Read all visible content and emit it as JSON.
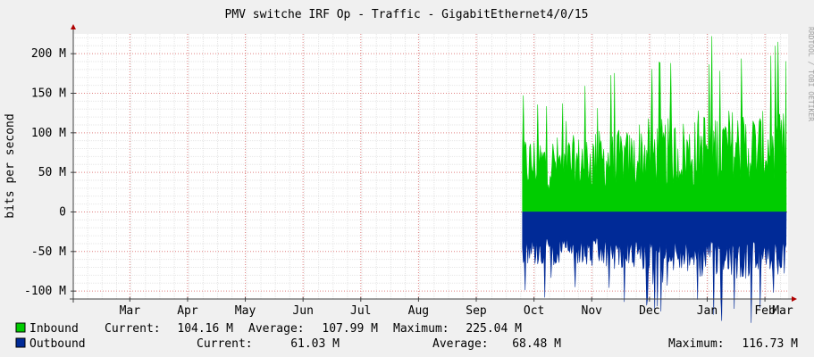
{
  "chart_data": {
    "type": "area",
    "title": "PMV switche IRF Op - Traffic - GigabitEthernet4/0/15",
    "ylabel": "bits per second",
    "watermark": "RRDTOOL / TOBI OETIKER",
    "ylim": [
      -110,
      225
    ],
    "yunit": "M",
    "yticks": [
      {
        "value": 200,
        "label": "200 M"
      },
      {
        "value": 150,
        "label": "150 M"
      },
      {
        "value": 100,
        "label": "100 M"
      },
      {
        "value": 50,
        "label": "50 M"
      },
      {
        "value": 0,
        "label": "0"
      },
      {
        "value": -50,
        "label": "-50 M"
      },
      {
        "value": -100,
        "label": "-100 M"
      }
    ],
    "x_months": [
      "Mar",
      "Apr",
      "May",
      "Jun",
      "Jul",
      "Aug",
      "Sep",
      "Oct",
      "Nov",
      "Dec",
      "Jan",
      "Feb",
      "Mar"
    ],
    "data_start_month_index": 6.8,
    "series": [
      {
        "name": "Inbound",
        "color": "#00cc00",
        "direction": "positive",
        "current": "104.16 M",
        "average": "107.99 M",
        "maximum": "225.04 M",
        "monthly_typical_peak": [
          110,
          118,
          135,
          150,
          145,
          140,
          135
        ],
        "monthly_typical_base": [
          25,
          26,
          28,
          30,
          30,
          28,
          28
        ]
      },
      {
        "name": "Outbound",
        "color": "#002a97",
        "direction": "negative",
        "current": "61.03 M",
        "average": "68.48 M",
        "maximum": "116.73 M",
        "monthly_typical_peak": [
          75,
          80,
          85,
          95,
          90,
          85,
          80
        ],
        "monthly_typical_base": [
          30,
          32,
          33,
          35,
          34,
          33,
          32
        ]
      }
    ],
    "legend_labels": {
      "current": "Current:",
      "average": "Average:",
      "maximum": "Maximum:"
    },
    "grid": true,
    "colors": {
      "background": "#f0f0f0",
      "canvas": "#ffffff",
      "grid_minor": "#e6e6e6",
      "grid_major": "#e08080",
      "axis": "#404040",
      "arrow": "#b00000"
    }
  }
}
